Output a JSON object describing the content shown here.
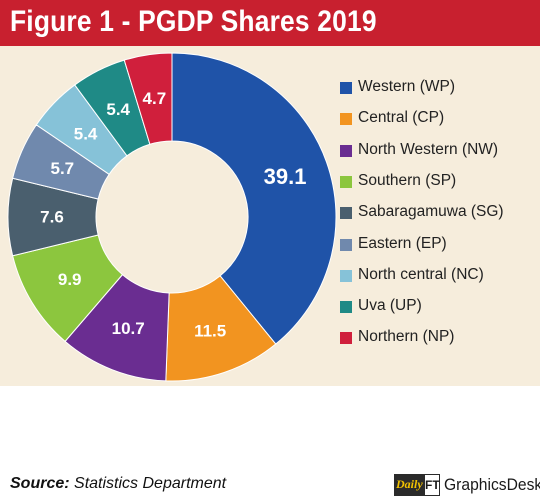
{
  "title": "Figure 1 - PGDP Shares 2019",
  "colors": {
    "title_bg": "#c8202f",
    "panel_bg": "#f6eddc",
    "label_text": "#ffffff"
  },
  "chart_data": {
    "type": "pie",
    "variant": "donut",
    "title": "Figure 1 - PGDP Shares 2019",
    "legend_position": "right",
    "categories": [
      "Western (WP)",
      "Central (CP)",
      "North Western (NW)",
      "Southern (SP)",
      "Sabaragamuwa (SG)",
      "Eastern (EP)",
      "North central (NC)",
      "Uva (UP)",
      "Northern (NP)"
    ],
    "values": [
      39.1,
      11.5,
      10.7,
      9.9,
      7.6,
      5.7,
      5.4,
      5.4,
      4.7
    ],
    "labels": [
      "39.1",
      "11.5",
      "10.7",
      "9.9",
      "7.6",
      "5.7",
      "5.4",
      "5.4",
      "4.7"
    ],
    "colors": [
      "#1f53a8",
      "#f29420",
      "#6a2d91",
      "#8cc63e",
      "#4a5f6e",
      "#7089ad",
      "#86c2d8",
      "#1f8a86",
      "#d01f3c"
    ]
  },
  "source": {
    "label": "Source:",
    "text": " Statistics Department"
  },
  "credit": {
    "logo_word": "Daily",
    "logo_mark": "FT",
    "text": "GraphicsDesk"
  }
}
